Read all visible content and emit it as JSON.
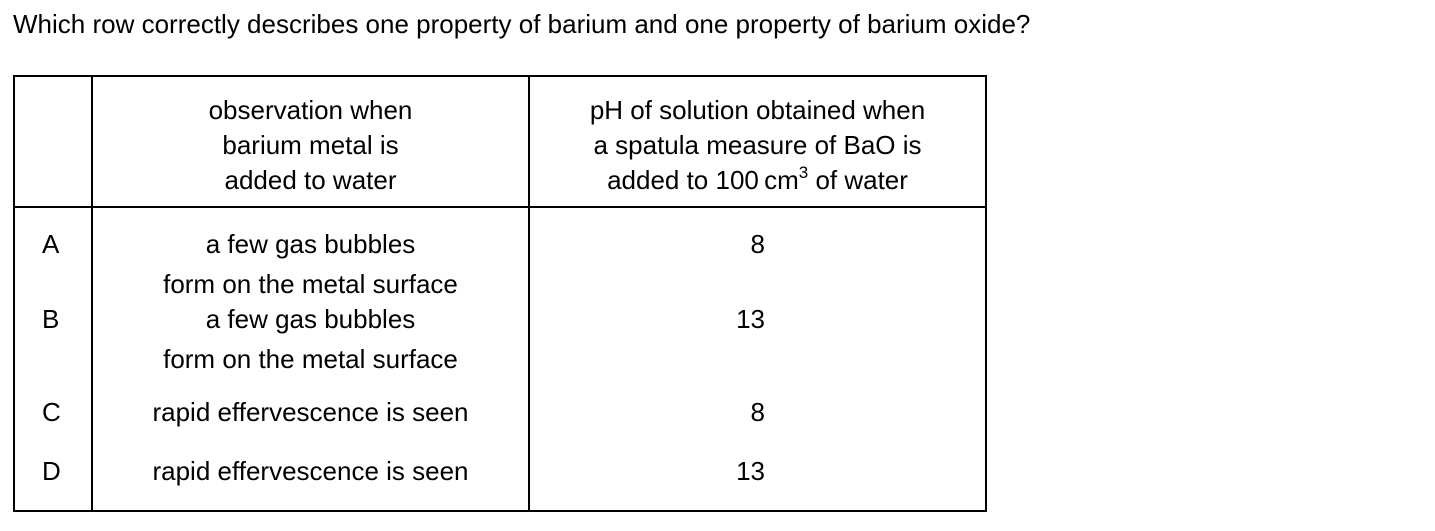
{
  "question": "Which row correctly describes one property of barium and one property of barium oxide?",
  "table": {
    "header": {
      "letter": "",
      "observation_lines": [
        "observation when",
        "barium metal is",
        "added to water"
      ],
      "ph_line1": "pH of solution obtained when",
      "ph_line2": "a spatula measure of BaO is",
      "ph_line3_before": "added to 100 cm",
      "ph_line3_sup": "3",
      "ph_line3_after": " of water"
    },
    "rows": [
      {
        "letter": "A",
        "observation_lines": [
          "a few gas bubbles",
          "form on the metal surface"
        ],
        "ph": "8"
      },
      {
        "letter": "B",
        "observation_lines": [
          "a few gas bubbles",
          "form on the metal surface"
        ],
        "ph": "13"
      },
      {
        "letter": "C",
        "observation_lines": [
          "rapid effervescence is seen"
        ],
        "ph": "8"
      },
      {
        "letter": "D",
        "observation_lines": [
          "rapid effervescence is seen"
        ],
        "ph": "13"
      }
    ]
  }
}
